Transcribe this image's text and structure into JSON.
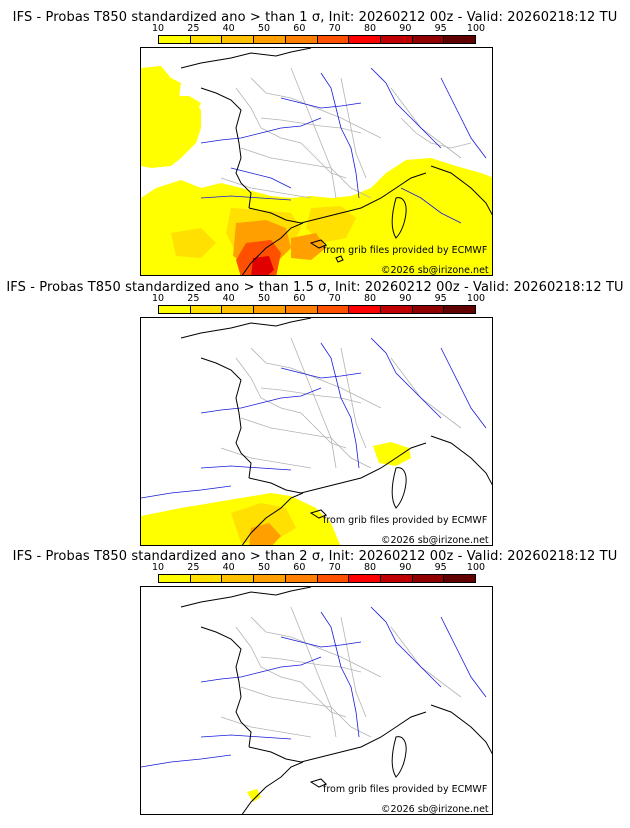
{
  "legend": {
    "labels": [
      "10",
      "25",
      "40",
      "50",
      "60",
      "70",
      "80",
      "90",
      "95",
      "100"
    ],
    "colors": [
      "#ffff00",
      "#ffe000",
      "#ffc000",
      "#ffa000",
      "#ff8000",
      "#ff5000",
      "#ff0000",
      "#c00000",
      "#900000",
      "#600000"
    ]
  },
  "colors": {
    "coastline": "#000000",
    "rivers": "#1a1adc",
    "borders": "#b4b4b4"
  },
  "panels": [
    {
      "title": "IFS - Probas T850  standardized ano > than 1 σ, Init: 20260212 00z - Valid: 20260218:12 TU",
      "credit_source": "from grib files provided by ECMWF",
      "credit_copyright": "©2026 sb@irizone.net"
    },
    {
      "title": "IFS - Probas T850  standardized ano > than 1.5 σ, Init: 20260212 00z - Valid: 20260218:12 TU",
      "credit_source": "from grib files provided by ECMWF",
      "credit_copyright": "©2026 sb@irizone.net"
    },
    {
      "title": "IFS - Probas T850  standardized ano > than 2 σ, Init: 20260212 00z - Valid: 20260218:12 TU",
      "credit_source": "from grib files provided by ECMWF",
      "credit_copyright": "©2026 sb@irizone.net"
    }
  ]
}
